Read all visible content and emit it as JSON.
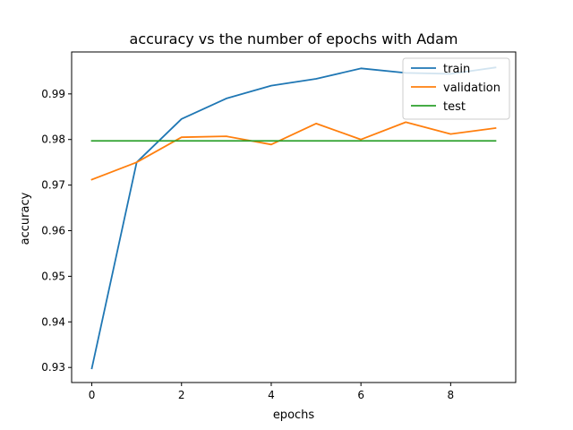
{
  "chart_data": {
    "type": "line",
    "title": "accuracy vs the number of epochs with Adam",
    "xlabel": "epochs",
    "ylabel": "accuracy",
    "x": [
      0,
      1,
      2,
      3,
      4,
      5,
      6,
      7,
      8,
      9
    ],
    "xlim": [
      -0.45,
      9.45
    ],
    "ylim": [
      0.9267,
      0.9992
    ],
    "xticks": [
      0,
      2,
      4,
      6,
      8
    ],
    "xtick_labels": [
      "0",
      "2",
      "4",
      "6",
      "8"
    ],
    "yticks": [
      0.93,
      0.94,
      0.95,
      0.96,
      0.97,
      0.98,
      0.99
    ],
    "ytick_labels": [
      "0.93",
      "0.94",
      "0.95",
      "0.96",
      "0.97",
      "0.98",
      "0.99"
    ],
    "grid": false,
    "legend_position": "top-right",
    "series": [
      {
        "name": "train",
        "color": "#1f77b4",
        "values": [
          0.9298,
          0.975,
          0.9845,
          0.989,
          0.9918,
          0.9933,
          0.9956,
          0.9946,
          0.9944,
          0.9958
        ]
      },
      {
        "name": "validation",
        "color": "#ff7f0e",
        "values": [
          0.9712,
          0.975,
          0.9805,
          0.9807,
          0.9789,
          0.9835,
          0.98,
          0.9838,
          0.9812,
          0.9825
        ]
      },
      {
        "name": "test",
        "color": "#2ca02c",
        "values": [
          0.9797,
          0.9797,
          0.9797,
          0.9797,
          0.9797,
          0.9797,
          0.9797,
          0.9797,
          0.9797,
          0.9797
        ]
      }
    ]
  }
}
